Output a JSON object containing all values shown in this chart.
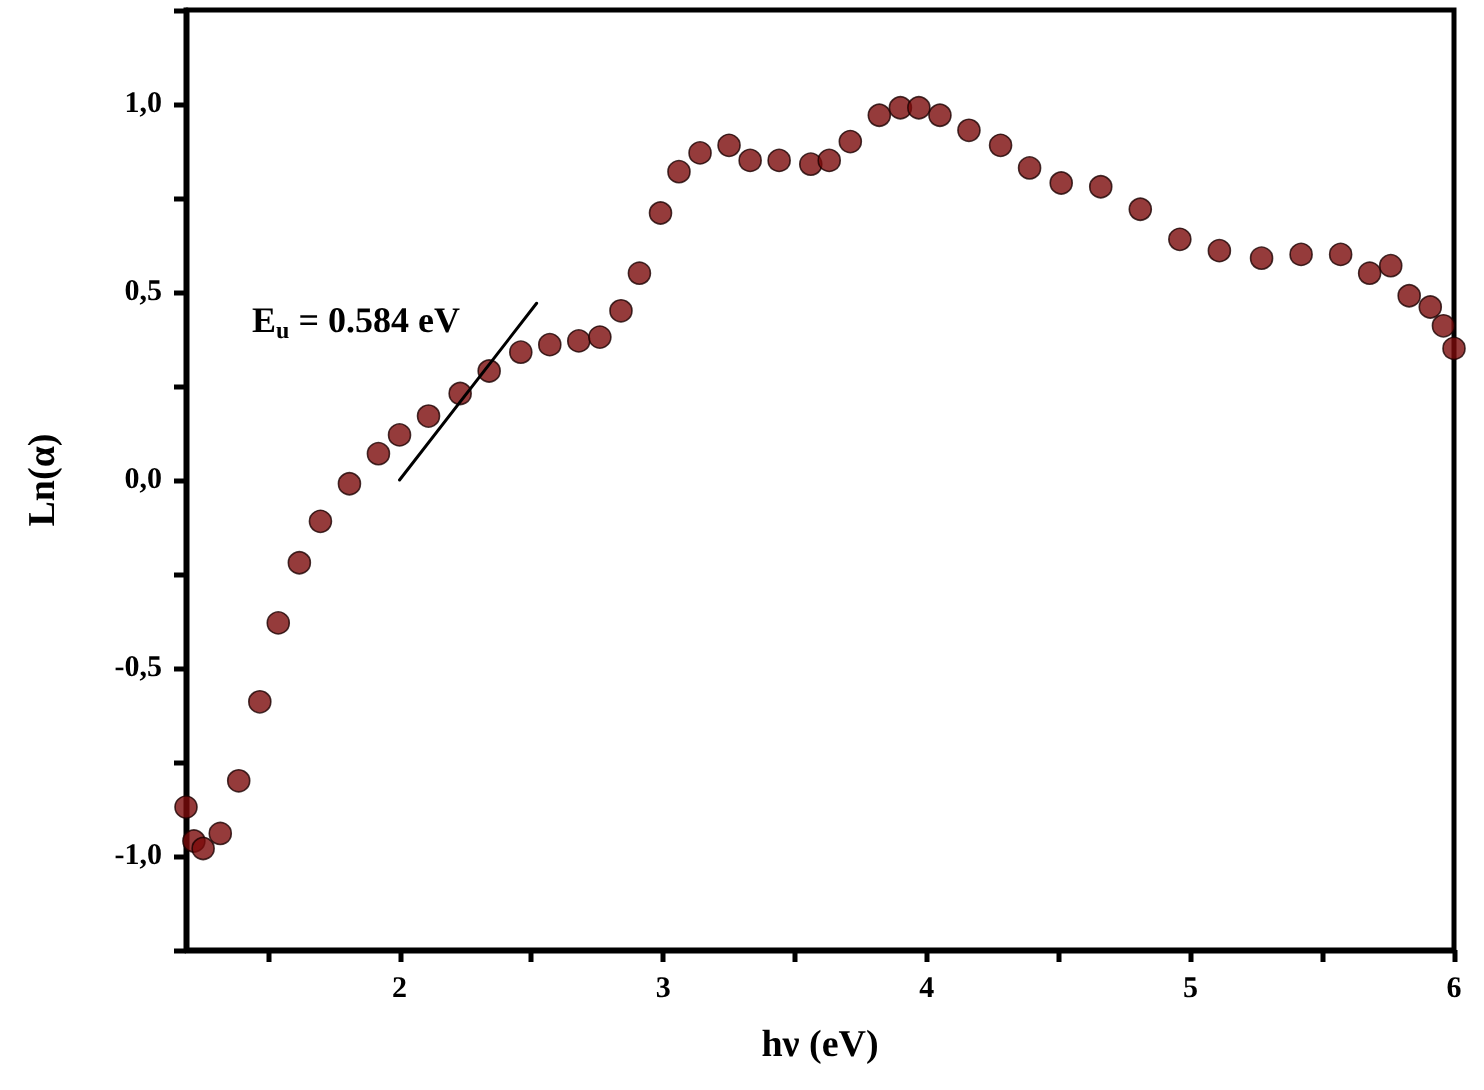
{
  "chart_data": {
    "type": "scatter",
    "xlabel": "hν (eV)",
    "ylabel": "Ln(α)",
    "xlim": [
      1.19,
      6
    ],
    "ylim": [
      -1.25,
      1.25
    ],
    "xticks": [
      {
        "value": 1.5,
        "label": null
      },
      2,
      {
        "value": 2.5,
        "label": null
      },
      3,
      {
        "value": 3.5,
        "label": null
      },
      4,
      {
        "value": 4.5,
        "label": null
      },
      5,
      {
        "value": 5.5,
        "label": null
      },
      6
    ],
    "yticks": [
      {
        "value": -1.25,
        "label": null
      },
      {
        "value": -1,
        "label": "-1,0"
      },
      {
        "value": -0.75,
        "label": null
      },
      {
        "value": -0.5,
        "label": "-0,5"
      },
      {
        "value": -0.25,
        "label": null
      },
      {
        "value": 0,
        "label": "0,0"
      },
      {
        "value": 0.25,
        "label": null
      },
      {
        "value": 0.5,
        "label": "0,5"
      },
      {
        "value": 0.75,
        "label": null
      },
      {
        "value": 1,
        "label": "1,0"
      },
      {
        "value": 1.25,
        "label": null
      }
    ],
    "grid": false,
    "marker": "circle",
    "annotations": [
      "E$_{u}$ = 0.584 eV"
    ],
    "series": [
      {
        "color": "#7a0a0a",
        "x": [
          1.19,
          1.22,
          1.255,
          1.32,
          1.39,
          1.47,
          1.54,
          1.62,
          1.7,
          1.81,
          1.92,
          2.0,
          2.11,
          2.23,
          2.34,
          2.46,
          2.57,
          2.68,
          2.76,
          2.84,
          2.91,
          2.99,
          3.06,
          3.14,
          3.25,
          3.33,
          3.44,
          3.56,
          3.63,
          3.71,
          3.82,
          3.9,
          3.97,
          4.05,
          4.16,
          4.28,
          4.39,
          4.51,
          4.66,
          4.81,
          4.96,
          5.11,
          5.27,
          5.42,
          5.57,
          5.68,
          5.76,
          5.83,
          5.91,
          5.96,
          6.0
        ],
        "values": [
          -0.87,
          -0.96,
          -0.98,
          -0.94,
          -0.8,
          -0.59,
          -0.38,
          -0.22,
          -0.11,
          -0.01,
          0.07,
          0.12,
          0.17,
          0.23,
          0.29,
          0.34,
          0.36,
          0.37,
          0.38,
          0.45,
          0.55,
          0.71,
          0.82,
          0.87,
          0.89,
          0.85,
          0.85,
          0.84,
          0.85,
          0.9,
          0.97,
          0.99,
          0.99,
          0.97,
          0.93,
          0.89,
          0.83,
          0.79,
          0.78,
          0.72,
          0.64,
          0.61,
          0.59,
          0.6,
          0.6,
          0.55,
          0.57,
          0.49,
          0.46,
          0.41,
          0.35
        ]
      },
      {
        "type": "line",
        "color": "#000000",
        "marker": "none",
        "x": [
          2.0,
          2.52
        ],
        "values": [
          0.0,
          0.47
        ]
      }
    ]
  }
}
